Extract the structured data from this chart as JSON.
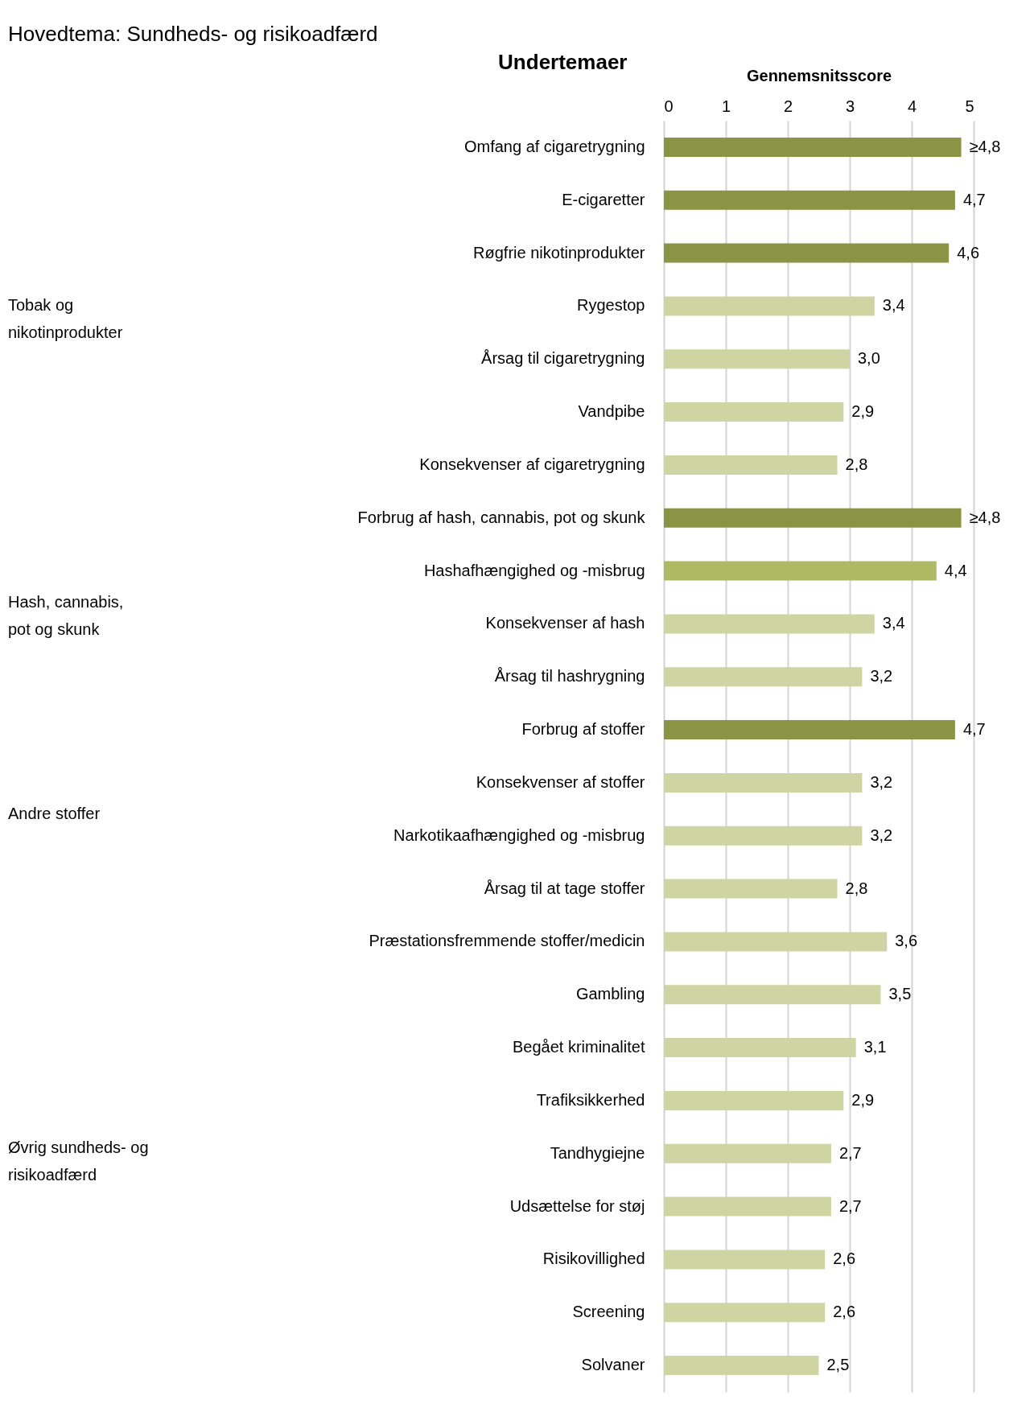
{
  "chart_data": {
    "type": "bar",
    "orientation": "horizontal",
    "title": "Hovedtema: Sundheds- og risikoadfærd",
    "ylabel": "Undertemaer",
    "xlabel": "Gennemsnitsscore",
    "categories": [
      "Omfang af cigaretrygning",
      "E-cigaretter",
      "Røgfrie nikotinprodukter",
      "Rygestop",
      "Årsag til cigaretrygning",
      "Vandpibe",
      "Konsekvenser af cigaretrygning",
      "Forbrug af hash, cannabis, pot og skunk",
      "Hashafhængighed og -misbrug",
      "Konsekvenser af hash",
      "Årsag til hashrygning",
      "Forbrug af stoffer",
      "Konsekvenser af stoffer",
      "Narkotikaafhængighed og -misbrug",
      "Årsag til at tage stoffer",
      "Præstationsfremmende stoffer/medicin",
      "Gambling",
      "Begået kriminalitet",
      "Trafiksikkerhed",
      "Tandhygiejne",
      "Udsættelse for støj",
      "Risikovillighed",
      "Screening",
      "Solvaner"
    ],
    "values": [
      4.8,
      4.7,
      4.6,
      3.4,
      3.0,
      2.9,
      2.8,
      4.8,
      4.4,
      3.4,
      3.2,
      4.7,
      3.2,
      3.2,
      2.8,
      3.6,
      3.5,
      3.1,
      2.9,
      2.7,
      2.7,
      2.6,
      2.6,
      2.5
    ],
    "value_labels": [
      "≥4,8",
      "4,7",
      "4,6",
      "3,4",
      "3,0",
      "2,9",
      "2,8",
      "≥4,8",
      "4,4",
      "3,4",
      "3,2",
      "4,7",
      "3,2",
      "3,2",
      "2,8",
      "3,6",
      "3,5",
      "3,1",
      "2,9",
      "2,7",
      "2,7",
      "2,6",
      "2,6",
      "2,5"
    ],
    "colors": [
      "#8a9444",
      "#8a9444",
      "#8a9444",
      "#ced5a2",
      "#ced5a2",
      "#ced5a2",
      "#ced5a2",
      "#8a9444",
      "#adb963",
      "#ced5a2",
      "#ced5a2",
      "#8a9444",
      "#ced5a2",
      "#ced5a2",
      "#ced5a2",
      "#ced5a2",
      "#ced5a2",
      "#ced5a2",
      "#ced5a2",
      "#ced5a2",
      "#ced5a2",
      "#ced5a2",
      "#ced5a2",
      "#ced5a2"
    ],
    "xlim": [
      0,
      5
    ],
    "xticks": [
      0,
      1,
      2,
      3,
      4,
      5
    ],
    "grid": "x",
    "annotations": [
      "Tobak og\nnikotinprodukter",
      "Hash, cannabis,\npot og skunk",
      "Andre stoffer",
      "Øvrig sundheds- og\nrisikoadfærd"
    ]
  }
}
